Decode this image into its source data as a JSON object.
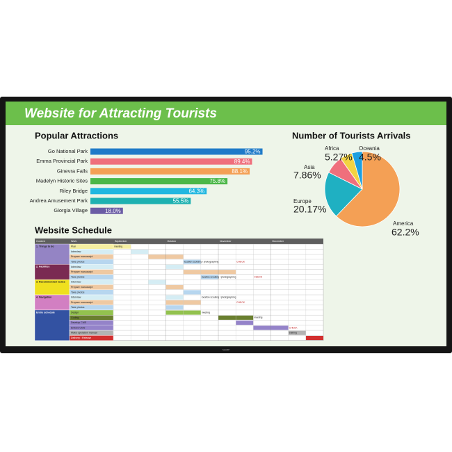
{
  "header": {
    "title": "Website for Attracting Tourists"
  },
  "bezel": {
    "brand": "SHARP"
  },
  "chart_data": [
    {
      "type": "hbar",
      "title": "Popular Attractions",
      "categories": [
        "Go National Park",
        "Emma Provincial Park",
        "Ginevra Falls",
        "Madelyn Historic Sites",
        "Riley Bridge",
        "Andrea Amusement Park",
        "Giorgia Village"
      ],
      "values": [
        95.2,
        89.4,
        88.1,
        75.8,
        64.3,
        55.5,
        18.0
      ],
      "value_labels": [
        "95.2%",
        "89.4%",
        "88.1%",
        "75.8%",
        "64.3%",
        "55.5%",
        "18.0%"
      ],
      "colors": [
        "#1f7ac8",
        "#ef6f7c",
        "#f4a055",
        "#4bb748",
        "#21b7e0",
        "#1eb1b1",
        "#6b5ca5"
      ]
    },
    {
      "type": "pie",
      "title": "Number of Tourists Arrivals",
      "categories": [
        "America",
        "Europe",
        "Asia",
        "Africa",
        "Oceania"
      ],
      "values": [
        62.2,
        20.17,
        7.86,
        5.27,
        4.5
      ],
      "value_labels": [
        "62.2%",
        "20.17%",
        "7.86%",
        "5.27%",
        "4.5%"
      ],
      "colors": [
        "#f4a055",
        "#1fb0c2",
        "#ef6f7c",
        "#f2d341",
        "#1c9fe0"
      ]
    }
  ],
  "schedule": {
    "title": "Website Schedule",
    "columns": [
      "Content",
      "Work",
      "September",
      "October",
      "November",
      "December"
    ],
    "groups": [
      {
        "label": "1. Things to do",
        "color": "#9484c4",
        "rows": 4
      },
      {
        "label": "2. Facilities",
        "color": "#7a2a52",
        "rows": 3
      },
      {
        "label": "3. Recommended routes",
        "color": "#efe01f",
        "rows": 3
      },
      {
        "label": "4. Navigation",
        "color": "#d27fc2",
        "rows": 3
      },
      {
        "label": "Entire schedule",
        "color": "#3352a2",
        "rows": 6
      }
    ],
    "rows": [
      {
        "work": "Plan",
        "color": "#f5efa2",
        "span": [
          0,
          1
        ],
        "notes": [
          {
            "text": "meeting",
            "at": 0
          }
        ]
      },
      {
        "work": "Interview",
        "color": "#d5edf4",
        "span": [
          1,
          2
        ],
        "notes": []
      },
      {
        "work": "Prepare manuscript",
        "color": "#efc9a2",
        "span": [
          2,
          4
        ],
        "notes": []
      },
      {
        "work": "Take photos",
        "color": "#b7d6ef",
        "span": [
          4,
          5
        ],
        "notes": [
          {
            "text": "location scouting / photographing",
            "at": 4
          },
          {
            "text": "CHECK",
            "at": 7
          }
        ]
      },
      {
        "work": "Interview",
        "color": "#d5edf4",
        "span": [
          3,
          4
        ],
        "notes": []
      },
      {
        "work": "Prepare manuscript",
        "color": "#efc9a2",
        "span": [
          4,
          7
        ],
        "notes": []
      },
      {
        "work": "Take photos",
        "color": "#b7d6ef",
        "span": [
          5,
          6
        ],
        "notes": [
          {
            "text": "location scouting / photographing",
            "at": 5
          },
          {
            "text": "CHECK",
            "at": 8
          }
        ]
      },
      {
        "work": "Interview",
        "color": "#d5edf4",
        "span": [
          2,
          3
        ],
        "notes": []
      },
      {
        "work": "Prepare manuscript",
        "color": "#efc9a2",
        "span": [
          3,
          4
        ],
        "notes": []
      },
      {
        "work": "Take photos",
        "color": "#b7d6ef",
        "span": [
          4,
          5
        ],
        "notes": []
      },
      {
        "work": "Interview",
        "color": "#d5edf4",
        "span": [
          3,
          4
        ],
        "notes": [
          {
            "text": "location scouting / photographing",
            "at": 5
          }
        ]
      },
      {
        "work": "Prepare manuscript",
        "color": "#efc9a2",
        "span": [
          3,
          5
        ],
        "notes": [
          {
            "text": "CHECK",
            "at": 7
          }
        ]
      },
      {
        "work": "Take photos",
        "color": "#b7d6ef",
        "span": [
          3,
          4
        ],
        "notes": []
      },
      {
        "work": "Design",
        "color": "#93c24f",
        "span": [
          3,
          5
        ],
        "notes": [
          {
            "text": "meeting",
            "at": 5
          }
        ]
      },
      {
        "work": "Coding",
        "color": "#6a7f2f",
        "span": [
          6,
          8
        ],
        "notes": [
          {
            "text": "meeting",
            "at": 8
          }
        ]
      },
      {
        "work": "Develop CMS",
        "color": "#9483c9",
        "span": [
          7,
          8
        ],
        "notes": []
      },
      {
        "work": "Embed CMS",
        "color": "#9483c9",
        "span": [
          8,
          10
        ],
        "notes": [
          {
            "text": "CHECK",
            "at": 10
          }
        ]
      },
      {
        "work": "Make operation manual",
        "color": "#b3b3b3",
        "span": [
          10,
          11
        ],
        "notes": [
          {
            "text": "training",
            "at": 10
          }
        ]
      },
      {
        "work": "Delivery / Release",
        "color": "#d22f2f",
        "span": [
          11,
          12
        ],
        "notes": []
      }
    ]
  }
}
